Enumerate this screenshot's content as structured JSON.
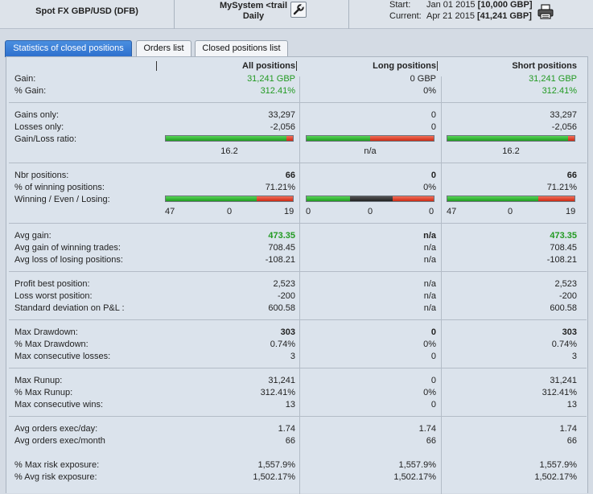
{
  "header": {
    "symbol": "Spot FX GBP/USD (DFB)",
    "system_name": "MySystem <trail",
    "timeframe": "Daily",
    "start_label": "Start:",
    "start_date": "Jan 01 2015",
    "start_capital": "[10,000 GBP]",
    "current_label": "Current:",
    "current_date": "Apr 21 2015",
    "current_capital": "[41,241 GBP]",
    "settings_icon": "wrench-icon",
    "print_icon": "printer-icon"
  },
  "tabs": [
    {
      "label": "Statistics of closed positions",
      "active": true
    },
    {
      "label": "Orders list",
      "active": false
    },
    {
      "label": "Closed positions list",
      "active": false
    }
  ],
  "columns": [
    "All positions",
    "Long positions",
    "Short positions"
  ],
  "colors": {
    "positive": "#229a22",
    "bar_green": "#2eb52e",
    "bar_red": "#d8351c",
    "bar_even": "#333333"
  },
  "rows": {
    "gain": {
      "label": "Gain:",
      "values": [
        "31,241 GBP",
        "0 GBP",
        "31,241 GBP"
      ]
    },
    "pct_gain": {
      "label": "% Gain:",
      "values": [
        "312.41%",
        "0%",
        "312.41%"
      ]
    },
    "gains_only": {
      "label": "Gains only:",
      "values": [
        "33,297",
        "0",
        "33,297"
      ]
    },
    "losses_only": {
      "label": "Losses only:",
      "values": [
        "-2,056",
        "0",
        "-2,056"
      ]
    },
    "gl_ratio": {
      "label": "Gain/Loss ratio:",
      "values": [
        "16.2",
        "n/a",
        "16.2"
      ],
      "green_fraction": [
        0.95,
        0.5,
        0.95
      ]
    },
    "nbr_positions": {
      "label": "Nbr positions:",
      "values": [
        "66",
        "0",
        "66"
      ]
    },
    "pct_winning": {
      "label": "% of winning positions:",
      "values": [
        "71.21%",
        "0%",
        "71.21%"
      ]
    },
    "wel": {
      "label": "Winning / Even / Losing:",
      "counts": [
        [
          "47",
          "0",
          "19"
        ],
        [
          "0",
          "0",
          "0"
        ],
        [
          "47",
          "0",
          "19"
        ]
      ],
      "fractions": [
        [
          0.7121,
          0,
          0.2879
        ],
        [
          0.34,
          0.34,
          0.32
        ],
        [
          0.7121,
          0,
          0.2879
        ]
      ]
    },
    "avg_gain": {
      "label": "Avg gain:",
      "values": [
        "473.35",
        "n/a",
        "473.35"
      ]
    },
    "avg_gain_winning": {
      "label": "Avg gain of winning trades:",
      "values": [
        "708.45",
        "n/a",
        "708.45"
      ]
    },
    "avg_loss_losing": {
      "label": "Avg loss of losing positions:",
      "values": [
        "-108.21",
        "n/a",
        "-108.21"
      ]
    },
    "profit_best": {
      "label": "Profit best position:",
      "values": [
        "2,523",
        "n/a",
        "2,523"
      ]
    },
    "loss_worst": {
      "label": "Loss worst position:",
      "values": [
        "-200",
        "n/a",
        "-200"
      ]
    },
    "std_dev": {
      "label": "Standard deviation on P&L :",
      "values": [
        "600.58",
        "n/a",
        "600.58"
      ]
    },
    "max_drawdown": {
      "label": "Max Drawdown:",
      "values": [
        "303",
        "0",
        "303"
      ]
    },
    "pct_max_drawdown": {
      "label": "% Max Drawdown:",
      "values": [
        "0.74%",
        "0%",
        "0.74%"
      ]
    },
    "max_consec_losses": {
      "label": "Max consecutive losses:",
      "values": [
        "3",
        "0",
        "3"
      ]
    },
    "max_runup": {
      "label": "Max Runup:",
      "values": [
        "31,241",
        "0",
        "31,241"
      ]
    },
    "pct_max_runup": {
      "label": "% Max Runup:",
      "values": [
        "312.41%",
        "0%",
        "312.41%"
      ]
    },
    "max_consec_wins": {
      "label": "Max consecutive wins:",
      "values": [
        "13",
        "0",
        "13"
      ]
    },
    "avg_orders_day": {
      "label": "Avg orders exec/day:",
      "values": [
        "1.74",
        "1.74",
        "1.74"
      ]
    },
    "avg_orders_month": {
      "label": "Avg orders exec/month",
      "values": [
        "66",
        "66",
        "66"
      ]
    },
    "pct_max_risk": {
      "label": "% Max risk exposure:",
      "values": [
        "1,557.9%",
        "1,557.9%",
        "1,557.9%"
      ]
    },
    "pct_avg_risk": {
      "label": "% Avg risk exposure:",
      "values": [
        "1,502.17%",
        "1,502.17%",
        "1,502.17%"
      ]
    }
  }
}
